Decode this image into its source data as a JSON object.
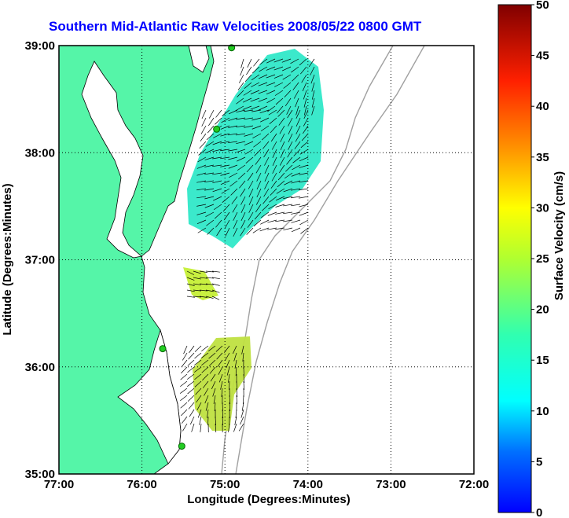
{
  "title": "Southern Mid-Atlantic Raw Velocities 2008/05/22 0800 GMT",
  "x_axis": {
    "label": "Longitude (Degrees:Minutes)",
    "ticks": [
      {
        "value": -77,
        "label": "77:00"
      },
      {
        "value": -76,
        "label": "76:00"
      },
      {
        "value": -75,
        "label": "75:00"
      },
      {
        "value": -74,
        "label": "74:00"
      },
      {
        "value": -73,
        "label": "73:00"
      },
      {
        "value": -72,
        "label": "72:00"
      }
    ],
    "range": [
      -77,
      -72
    ]
  },
  "y_axis": {
    "label": "Latitude (Degrees:Minutes)",
    "ticks": [
      {
        "value": 39,
        "label": "39:00"
      },
      {
        "value": 38,
        "label": "38:00"
      },
      {
        "value": 37,
        "label": "37:00"
      },
      {
        "value": 36,
        "label": "36:00"
      },
      {
        "value": 35,
        "label": "35:00"
      }
    ],
    "range": [
      35,
      39
    ]
  },
  "colorbar": {
    "label": "Surface Velocity (cm/s)",
    "min": 0,
    "max": 50,
    "ticks": [
      {
        "value": 50,
        "label": "50"
      },
      {
        "value": 45,
        "label": "45"
      },
      {
        "value": 40,
        "label": "40"
      },
      {
        "value": 35,
        "label": "35"
      },
      {
        "value": 30,
        "label": "30"
      },
      {
        "value": 25,
        "label": "25"
      },
      {
        "value": 20,
        "label": "20"
      },
      {
        "value": 15,
        "label": "15"
      },
      {
        "value": 10,
        "label": "10"
      },
      {
        "value": 5,
        "label": "5"
      },
      {
        "value": 0,
        "label": "0"
      }
    ]
  },
  "colors": {
    "land": "#55f5a8",
    "coast": "#000000",
    "bathymetry": "#a0a0a0",
    "grid": "#000000",
    "station": "#22cc22"
  },
  "grid": true,
  "stations": [
    {
      "lon": -74.92,
      "lat": 38.98
    },
    {
      "lon": -75.1,
      "lat": 38.22
    },
    {
      "lon": -75.75,
      "lat": 36.17
    },
    {
      "lon": -75.52,
      "lat": 35.26
    }
  ]
}
